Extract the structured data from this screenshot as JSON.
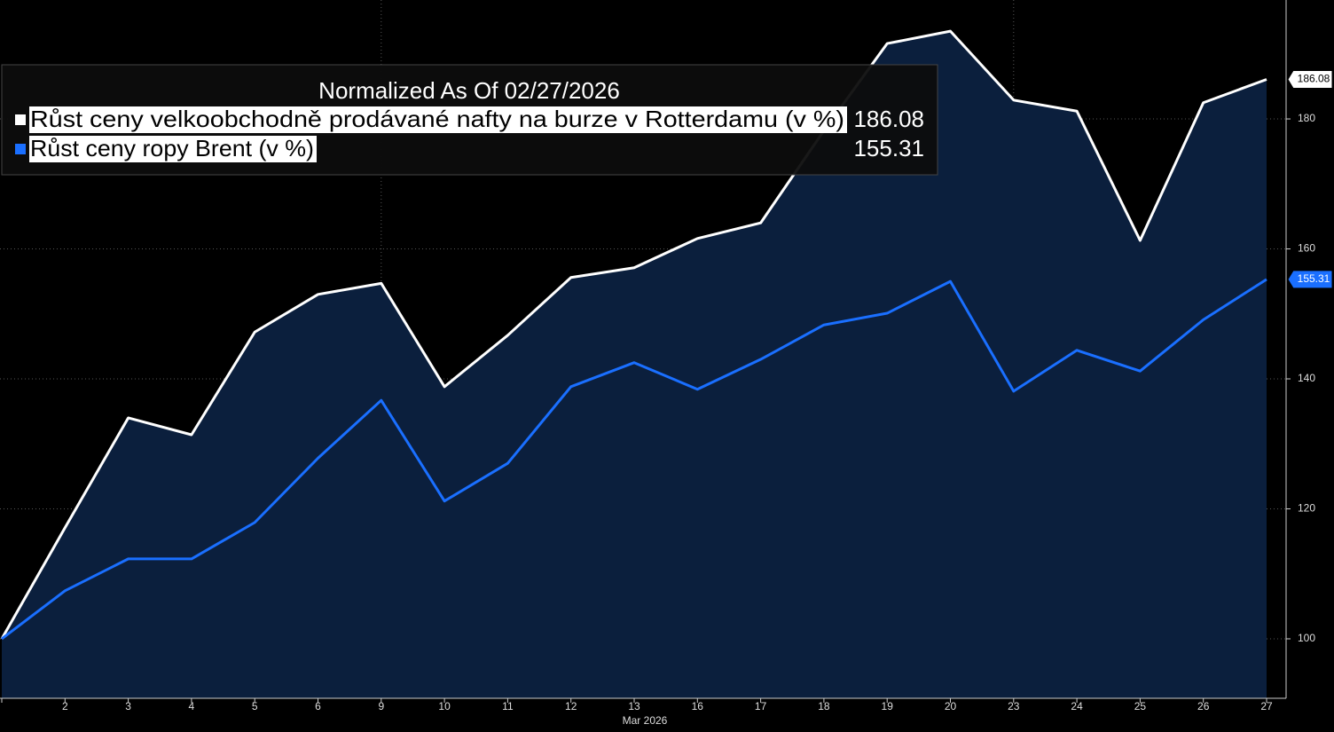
{
  "chart_data": {
    "type": "line",
    "legend_title": "Normalized As Of 02/27/2026",
    "x_axis_label": "Mar 2026",
    "categories": [
      null,
      "2",
      "3",
      "4",
      "5",
      "6",
      "9",
      "10",
      "11",
      "12",
      "13",
      "16",
      "17",
      "18",
      "19",
      "20",
      "23",
      "24",
      "25",
      "26",
      "27"
    ],
    "series": [
      {
        "name": "Růst ceny velkoobchodně prodávané nafty na burze v Rotterdamu (v %)",
        "color": "#ffffff",
        "fill": "#0b1f3d",
        "values": [
          100,
          117.1,
          134.0,
          131.4,
          147.2,
          153.0,
          154.7,
          138.8,
          146.7,
          155.6,
          157.1,
          161.6,
          164.0,
          178.2,
          191.6,
          193.5,
          182.9,
          181.2,
          161.3,
          182.5,
          186.08
        ]
      },
      {
        "name": "Růst ceny ropy Brent (v %)",
        "color": "#1a6fff",
        "values": [
          100,
          107.4,
          112.3,
          112.3,
          117.9,
          127.8,
          136.7,
          121.2,
          127.0,
          138.8,
          142.5,
          138.4,
          143.0,
          148.3,
          150.1,
          155.0,
          138.1,
          144.4,
          141.2,
          149.1,
          155.31
        ]
      }
    ],
    "ylim": [
      90.85,
      198.3
    ],
    "yticks": [
      100,
      120,
      140,
      160,
      180
    ],
    "grid": true
  }
}
